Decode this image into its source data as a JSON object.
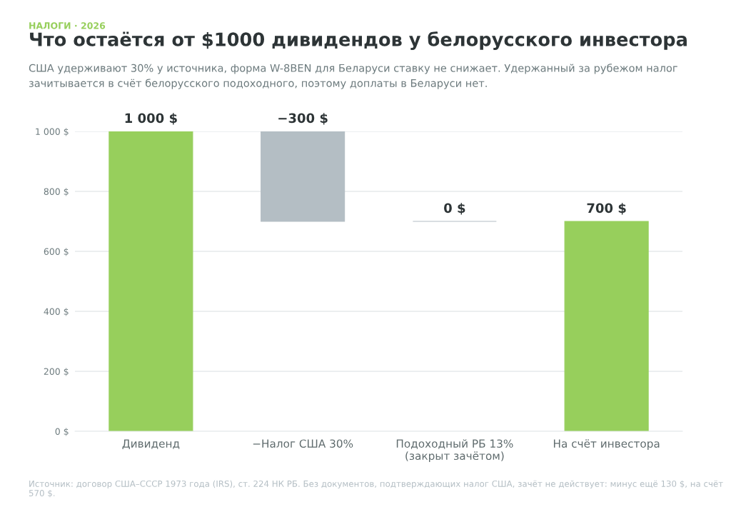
{
  "chart_data": {
    "type": "bar",
    "title": "Что остаётся от $1000 дивидендов у белорусского инвестора",
    "subtitle": "США удерживают 30% у источника, форма W-8BEN для Беларуси ставку не снижает. Удержанный за рубежом налог зачитывается в счёт белорусского подоходного, поэтому доплаты в Беларуси нет.",
    "annotations": [
      "НАЛОГИ · 2026",
      "Источник: договор США–СССР 1973 года (IRS), ст. 224 НК РБ. Без документов, подтверждающих налог США, зачёт не действует: минус ещё 130 $, на счёт 570 $."
    ],
    "categories": [
      "Дивиденд",
      "−Налог США 30%",
      "Подоходный РБ 13%\n(закрыт зачётом)",
      "На счёт инвестора"
    ],
    "values": [
      1000,
      -300,
      0,
      700
    ],
    "base": [
      0,
      1000,
      700,
      0
    ],
    "colors": [
      "#97cf5c",
      "#b4bec4",
      "#b4bec4",
      "#97cf5c"
    ],
    "value_labels": [
      "1 000 $",
      "−300 $",
      "0 $",
      "700 $"
    ],
    "ylim": [
      0,
      1000
    ],
    "yticks": [
      {
        "value": 0,
        "label": "0 $"
      },
      {
        "value": 200,
        "label": "200 $"
      },
      {
        "value": 400,
        "label": "400 $"
      },
      {
        "value": 600,
        "label": "600 $"
      },
      {
        "value": 800,
        "label": "800 $"
      },
      {
        "value": 1000,
        "label": "1 000 $"
      }
    ],
    "grid": "y",
    "legend": false
  }
}
